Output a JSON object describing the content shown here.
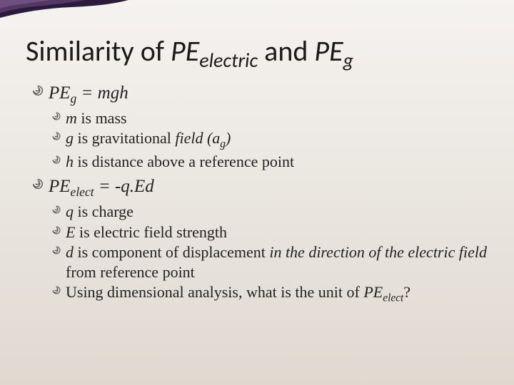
{
  "colors": {
    "swirl": "#5a5a5a",
    "accent_dark": "#2b1a3d",
    "accent_mid": "#5a3d6b",
    "text": "#1a1a1a"
  },
  "title": {
    "text_parts": [
      "Similarity of ",
      "PE",
      "electric",
      " and ",
      "PE",
      "g"
    ],
    "fontsize": 40
  },
  "bullets": [
    {
      "level": 1,
      "spans": [
        {
          "t": "PE",
          "i": true
        },
        {
          "t": "g",
          "i": true,
          "sub": true
        },
        {
          "t": " = ",
          "i": true
        },
        {
          "t": "mgh",
          "i": true
        }
      ]
    },
    {
      "level": 2,
      "spans": [
        {
          "t": "m",
          "i": true
        },
        {
          "t": " is mass"
        }
      ]
    },
    {
      "level": 2,
      "spans": [
        {
          "t": "g",
          "i": true
        },
        {
          "t": " is gravitational "
        },
        {
          "t": "field  (a",
          "i": true
        },
        {
          "t": "g",
          "i": true,
          "sub": true
        },
        {
          "t": ")",
          "i": true
        }
      ]
    },
    {
      "level": 2,
      "spans": [
        {
          "t": "h",
          "i": true
        },
        {
          "t": " is distance above a reference point"
        }
      ]
    },
    {
      "level": 1,
      "spans": [
        {
          "t": "PE",
          "i": true
        },
        {
          "t": "elect",
          "i": true,
          "sub": true
        },
        {
          "t": " = ",
          "i": true
        },
        {
          "t": "-q.Ed",
          "i": true
        }
      ]
    },
    {
      "level": 2,
      "spans": [
        {
          "t": "q",
          "i": true
        },
        {
          "t": " is charge"
        }
      ]
    },
    {
      "level": 2,
      "spans": [
        {
          "t": "E",
          "i": true
        },
        {
          "t": " is electric field strength"
        }
      ]
    },
    {
      "level": 2,
      "spans": [
        {
          "t": "d",
          "i": true
        },
        {
          "t": " is component of displacement "
        },
        {
          "t": "in the direction of the electric field",
          "i": true
        },
        {
          "t": " from reference point"
        }
      ]
    },
    {
      "level": 2,
      "spans": [
        {
          "t": "Using dimensional analysis, what is the unit of "
        },
        {
          "t": "PE",
          "i": true
        },
        {
          "t": "elect",
          "i": true,
          "sub": true
        },
        {
          "t": "?"
        }
      ]
    }
  ]
}
